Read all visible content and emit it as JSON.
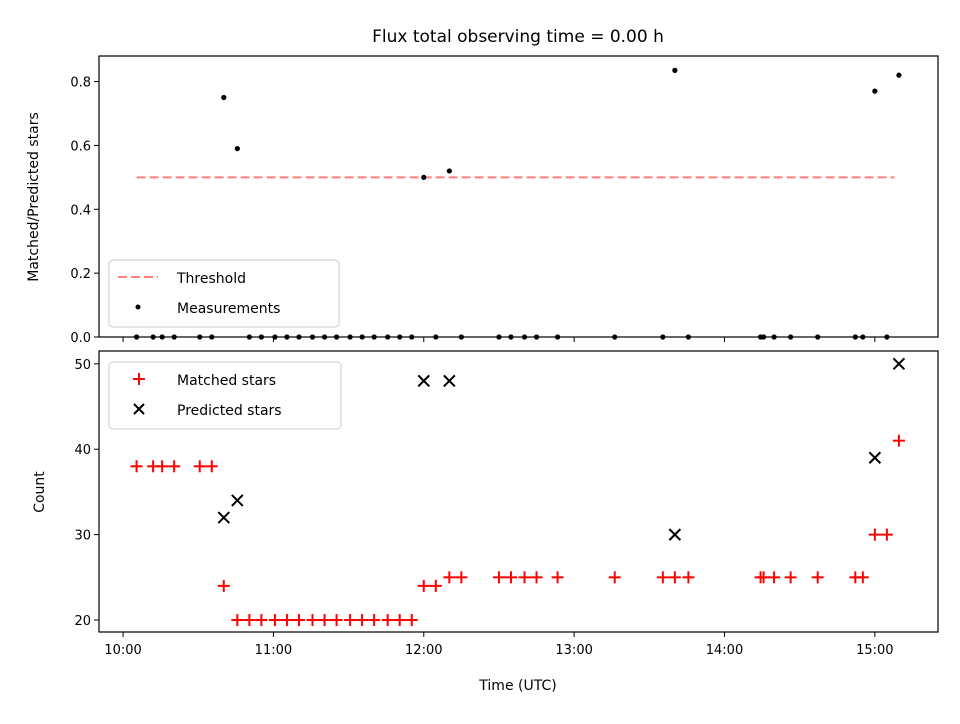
{
  "chart_data": {
    "title": "Flux total observing time = 0.00 h",
    "xlabel": "Time (UTC)",
    "x_ticks": [
      "10:00",
      "11:00",
      "12:00",
      "13:00",
      "14:00",
      "15:00"
    ],
    "x_tick_values": [
      10,
      11,
      12,
      13,
      14,
      15
    ],
    "xlim": [
      9.84,
      15.42
    ],
    "top": {
      "type": "scatter",
      "ylabel": "Matched/Predicted stars",
      "ylim": [
        0,
        0.88
      ],
      "yticks": [
        "0.0",
        "0.2",
        "0.4",
        "0.6",
        "0.8"
      ],
      "ytick_values": [
        0,
        0.2,
        0.4,
        0.6,
        0.8
      ],
      "threshold": {
        "name": "Threshold",
        "value": 0.5,
        "x_start": 10.09,
        "x_end": 15.13,
        "color": "#ff7f7f"
      },
      "measurements": {
        "name": "Measurements",
        "color": "#000000",
        "points": [
          [
            10.09,
            0
          ],
          [
            10.2,
            0
          ],
          [
            10.26,
            0
          ],
          [
            10.34,
            0
          ],
          [
            10.51,
            0
          ],
          [
            10.59,
            0
          ],
          [
            10.67,
            0.75
          ],
          [
            10.76,
            0.59
          ],
          [
            10.84,
            0
          ],
          [
            10.92,
            0
          ],
          [
            11.01,
            0
          ],
          [
            11.09,
            0
          ],
          [
            11.17,
            0
          ],
          [
            11.26,
            0
          ],
          [
            11.34,
            0
          ],
          [
            11.42,
            0
          ],
          [
            11.51,
            0
          ],
          [
            11.59,
            0
          ],
          [
            11.67,
            0
          ],
          [
            11.76,
            0
          ],
          [
            11.84,
            0
          ],
          [
            11.92,
            0
          ],
          [
            12.0,
            0.5
          ],
          [
            12.08,
            0
          ],
          [
            12.17,
            0.52
          ],
          [
            12.25,
            0
          ],
          [
            12.5,
            0
          ],
          [
            12.58,
            0
          ],
          [
            12.67,
            0
          ],
          [
            12.75,
            0
          ],
          [
            12.89,
            0
          ],
          [
            13.27,
            0
          ],
          [
            13.59,
            0
          ],
          [
            13.67,
            0.835
          ],
          [
            13.76,
            0
          ],
          [
            14.24,
            0
          ],
          [
            14.26,
            0
          ],
          [
            14.33,
            0
          ],
          [
            14.44,
            0
          ],
          [
            14.62,
            0
          ],
          [
            14.87,
            0
          ],
          [
            14.92,
            0
          ],
          [
            15.0,
            0.77
          ],
          [
            15.08,
            0
          ],
          [
            15.16,
            0.82
          ]
        ]
      },
      "legend": [
        "Threshold",
        "Measurements"
      ]
    },
    "bottom": {
      "type": "scatter",
      "ylabel": "Count",
      "ylim": [
        18.6,
        51.5
      ],
      "yticks": [
        "20",
        "30",
        "40",
        "50"
      ],
      "ytick_values": [
        20,
        30,
        40,
        50
      ],
      "matched": {
        "name": "Matched stars",
        "marker": "+",
        "color": "#ff0000",
        "points": [
          [
            10.09,
            38
          ],
          [
            10.2,
            38
          ],
          [
            10.26,
            38
          ],
          [
            10.34,
            38
          ],
          [
            10.51,
            38
          ],
          [
            10.59,
            38
          ],
          [
            10.67,
            24
          ],
          [
            10.76,
            20
          ],
          [
            10.84,
            20
          ],
          [
            10.92,
            20
          ],
          [
            11.01,
            20
          ],
          [
            11.09,
            20
          ],
          [
            11.17,
            20
          ],
          [
            11.26,
            20
          ],
          [
            11.34,
            20
          ],
          [
            11.42,
            20
          ],
          [
            11.51,
            20
          ],
          [
            11.59,
            20
          ],
          [
            11.67,
            20
          ],
          [
            11.76,
            20
          ],
          [
            11.84,
            20
          ],
          [
            11.92,
            20
          ],
          [
            12.0,
            24
          ],
          [
            12.08,
            24
          ],
          [
            12.17,
            25
          ],
          [
            12.25,
            25
          ],
          [
            12.5,
            25
          ],
          [
            12.58,
            25
          ],
          [
            12.67,
            25
          ],
          [
            12.75,
            25
          ],
          [
            12.89,
            25
          ],
          [
            13.27,
            25
          ],
          [
            13.59,
            25
          ],
          [
            13.67,
            25
          ],
          [
            13.76,
            25
          ],
          [
            14.24,
            25
          ],
          [
            14.26,
            25
          ],
          [
            14.33,
            25
          ],
          [
            14.44,
            25
          ],
          [
            14.62,
            25
          ],
          [
            14.87,
            25
          ],
          [
            14.92,
            25
          ],
          [
            15.0,
            30
          ],
          [
            15.08,
            30
          ],
          [
            15.16,
            41
          ]
        ]
      },
      "predicted": {
        "name": "Predicted stars",
        "marker": "x",
        "color": "#000000",
        "points": [
          [
            10.67,
            32
          ],
          [
            10.76,
            34
          ],
          [
            12.0,
            48
          ],
          [
            12.17,
            48
          ],
          [
            13.67,
            30
          ],
          [
            15.0,
            39
          ],
          [
            15.16,
            50
          ]
        ]
      },
      "legend": [
        "Matched stars",
        "Predicted stars"
      ]
    }
  }
}
